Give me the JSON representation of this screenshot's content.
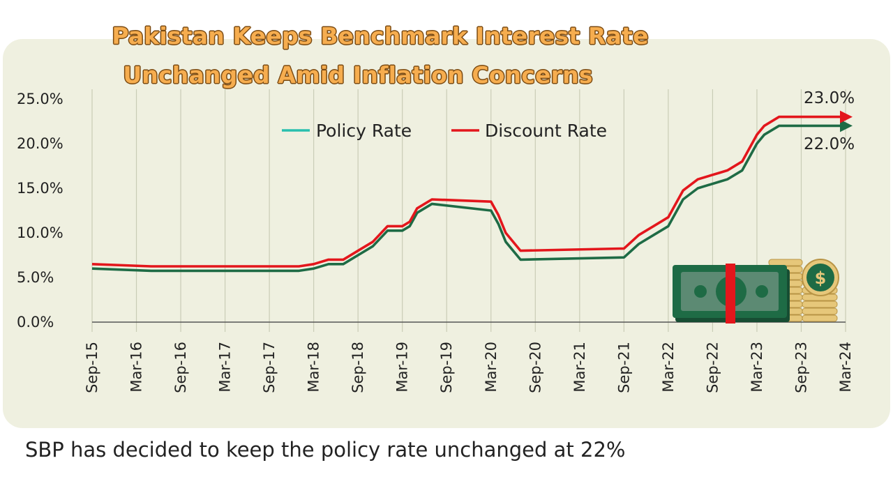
{
  "headline": {
    "line1": "Pakistan Keeps Benchmark Interest Rate",
    "line2": "Unchanged Amid Inflation Concerns"
  },
  "caption": "SBP has decided to keep the policy rate unchanged at 22%",
  "colors": {
    "policy": "#29bfae",
    "discount": "#e3161c",
    "policy_arrow": "#1e6b45",
    "panel": "#eff0e0"
  },
  "illustration": {
    "icon": "money-stack-icon",
    "coin_symbol": "$"
  },
  "chart_data": {
    "type": "line",
    "title": "",
    "xlabel": "",
    "ylabel": "",
    "ylim": [
      0,
      25
    ],
    "xlim": [
      "2015-09",
      "2024-03"
    ],
    "y_ticks": [
      "0.0%",
      "5.0%",
      "10.0%",
      "15.0%",
      "20.0%",
      "25.0%"
    ],
    "y_tick_values": [
      0,
      5,
      10,
      15,
      20,
      25
    ],
    "x_ticks": [
      "Sep-15",
      "Mar-16",
      "Sep-16",
      "Mar-17",
      "Sep-17",
      "Mar-18",
      "Sep-18",
      "Mar-19",
      "Sep-19",
      "Mar-20",
      "Sep-20",
      "Mar-21",
      "Sep-21",
      "Mar-22",
      "Sep-22",
      "Mar-23",
      "Sep-23",
      "Mar-24"
    ],
    "grid": "vertical",
    "legend": "top-center",
    "series": [
      {
        "name": "Policy Rate",
        "x": [
          "2015-09",
          "2016-05",
          "2018-01",
          "2018-03",
          "2018-05",
          "2018-07",
          "2018-09",
          "2018-11",
          "2019-01",
          "2019-03",
          "2019-04",
          "2019-05",
          "2019-07",
          "2020-03",
          "2020-04",
          "2020-05",
          "2020-07",
          "2021-09",
          "2021-11",
          "2022-01",
          "2022-03",
          "2022-04",
          "2022-05",
          "2022-07",
          "2022-10",
          "2022-11",
          "2023-01",
          "2023-03",
          "2023-04",
          "2023-06",
          "2024-03"
        ],
        "values": [
          6.0,
          5.75,
          5.75,
          6.0,
          6.5,
          6.5,
          7.5,
          8.5,
          10.25,
          10.25,
          10.75,
          12.25,
          13.25,
          12.5,
          11.0,
          9.0,
          7.0,
          7.25,
          8.75,
          9.75,
          10.75,
          12.25,
          13.75,
          15.0,
          15.75,
          16.0,
          17.0,
          20.0,
          21.0,
          22.0,
          22.0
        ]
      },
      {
        "name": "Discount Rate",
        "x": [
          "2015-09",
          "2016-05",
          "2018-01",
          "2018-03",
          "2018-05",
          "2018-07",
          "2018-09",
          "2018-11",
          "2019-01",
          "2019-03",
          "2019-04",
          "2019-05",
          "2019-07",
          "2020-03",
          "2020-04",
          "2020-05",
          "2020-07",
          "2021-09",
          "2021-11",
          "2022-01",
          "2022-03",
          "2022-04",
          "2022-05",
          "2022-07",
          "2022-10",
          "2022-11",
          "2023-01",
          "2023-03",
          "2023-04",
          "2023-06",
          "2024-03"
        ],
        "values": [
          6.5,
          6.25,
          6.25,
          6.5,
          7.0,
          7.0,
          8.0,
          9.0,
          10.75,
          10.75,
          11.25,
          12.75,
          13.75,
          13.5,
          12.0,
          10.0,
          8.0,
          8.25,
          9.75,
          10.75,
          11.75,
          13.25,
          14.75,
          16.0,
          16.75,
          17.0,
          18.0,
          21.0,
          22.0,
          23.0,
          23.0
        ]
      }
    ],
    "end_labels": [
      "23.0%",
      "22.0%"
    ]
  }
}
